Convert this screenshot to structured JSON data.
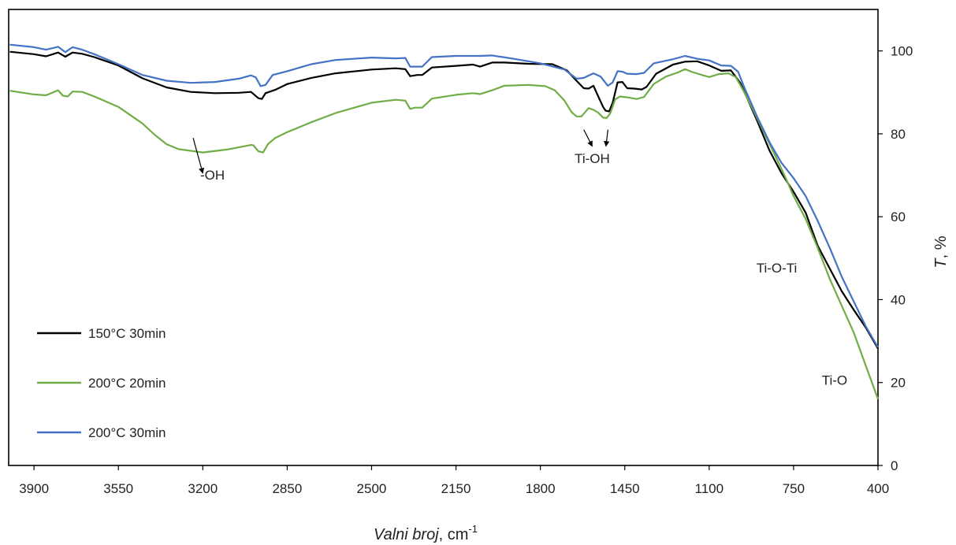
{
  "chart_data": {
    "type": "line",
    "xlabel_italic": "Valni broj",
    "xlabel_unit": ", cm",
    "xlabel_superscript": "-1",
    "ylabel_italic": "T",
    "ylabel_unit": ", %",
    "xlim": [
      4000,
      400
    ],
    "ylim": [
      0,
      100
    ],
    "x_ticks": [
      3900,
      3550,
      3200,
      2850,
      2500,
      2150,
      1800,
      1450,
      1100,
      750,
      400
    ],
    "y_ticks": [
      0,
      20,
      40,
      60,
      80,
      100
    ],
    "grid": false,
    "legend_position": "bottom-left",
    "series": [
      {
        "name": "150°C 30min",
        "color": "#000000",
        "points": [
          [
            4000,
            99.8
          ],
          [
            3900,
            99.2
          ],
          [
            3850,
            98.7
          ],
          [
            3800,
            99.6
          ],
          [
            3770,
            98.6
          ],
          [
            3740,
            99.6
          ],
          [
            3700,
            99.3
          ],
          [
            3650,
            98.5
          ],
          [
            3550,
            96.5
          ],
          [
            3450,
            93.4
          ],
          [
            3350,
            91.2
          ],
          [
            3250,
            90.1
          ],
          [
            3150,
            89.8
          ],
          [
            3050,
            89.9
          ],
          [
            3000,
            90.1
          ],
          [
            2970,
            88.6
          ],
          [
            2955,
            88.4
          ],
          [
            2940,
            89.8
          ],
          [
            2900,
            90.6
          ],
          [
            2850,
            92.0
          ],
          [
            2750,
            93.5
          ],
          [
            2650,
            94.6
          ],
          [
            2500,
            95.5
          ],
          [
            2400,
            95.8
          ],
          [
            2360,
            95.6
          ],
          [
            2340,
            93.9
          ],
          [
            2310,
            94.2
          ],
          [
            2290,
            94.2
          ],
          [
            2250,
            96.0
          ],
          [
            2150,
            96.4
          ],
          [
            2080,
            96.7
          ],
          [
            2050,
            96.2
          ],
          [
            2000,
            97.2
          ],
          [
            1950,
            97.2
          ],
          [
            1850,
            96.9
          ],
          [
            1750,
            96.8
          ],
          [
            1690,
            95.3
          ],
          [
            1650,
            92.8
          ],
          [
            1620,
            91.0
          ],
          [
            1600,
            90.9
          ],
          [
            1580,
            91.6
          ],
          [
            1560,
            89.0
          ],
          [
            1540,
            86.5
          ],
          [
            1530,
            85.6
          ],
          [
            1515,
            85.4
          ],
          [
            1500,
            87.5
          ],
          [
            1480,
            92.4
          ],
          [
            1460,
            92.5
          ],
          [
            1440,
            91.0
          ],
          [
            1410,
            90.9
          ],
          [
            1380,
            90.7
          ],
          [
            1360,
            91.3
          ],
          [
            1320,
            94.5
          ],
          [
            1250,
            96.7
          ],
          [
            1200,
            97.4
          ],
          [
            1150,
            97.5
          ],
          [
            1100,
            96.5
          ],
          [
            1050,
            95.2
          ],
          [
            1010,
            95.3
          ],
          [
            970,
            92.2
          ],
          [
            900,
            83.0
          ],
          [
            850,
            76.0
          ],
          [
            800,
            70.5
          ],
          [
            750,
            66.0
          ],
          [
            700,
            61.0
          ],
          [
            650,
            53.0
          ],
          [
            600,
            47.5
          ],
          [
            550,
            42.0
          ],
          [
            500,
            37.5
          ],
          [
            450,
            33.2
          ],
          [
            400,
            28.2
          ]
        ]
      },
      {
        "name": "200°C 20min",
        "color": "#70AD47",
        "points": [
          [
            4000,
            90.4
          ],
          [
            3900,
            89.5
          ],
          [
            3850,
            89.3
          ],
          [
            3800,
            90.5
          ],
          [
            3780,
            89.2
          ],
          [
            3760,
            89.0
          ],
          [
            3740,
            90.2
          ],
          [
            3700,
            90.1
          ],
          [
            3650,
            89.0
          ],
          [
            3550,
            86.5
          ],
          [
            3450,
            82.5
          ],
          [
            3400,
            79.8
          ],
          [
            3350,
            77.5
          ],
          [
            3300,
            76.3
          ],
          [
            3200,
            75.5
          ],
          [
            3100,
            76.2
          ],
          [
            3000,
            77.3
          ],
          [
            2990,
            77.2
          ],
          [
            2970,
            75.8
          ],
          [
            2950,
            75.5
          ],
          [
            2930,
            77.5
          ],
          [
            2900,
            79.0
          ],
          [
            2850,
            80.4
          ],
          [
            2750,
            82.8
          ],
          [
            2650,
            85.0
          ],
          [
            2500,
            87.5
          ],
          [
            2400,
            88.2
          ],
          [
            2360,
            88.0
          ],
          [
            2340,
            86.0
          ],
          [
            2320,
            86.3
          ],
          [
            2290,
            86.3
          ],
          [
            2250,
            88.5
          ],
          [
            2150,
            89.4
          ],
          [
            2080,
            89.8
          ],
          [
            2050,
            89.6
          ],
          [
            2000,
            90.5
          ],
          [
            1950,
            91.6
          ],
          [
            1850,
            91.8
          ],
          [
            1780,
            91.5
          ],
          [
            1740,
            90.5
          ],
          [
            1700,
            88.0
          ],
          [
            1670,
            85.2
          ],
          [
            1650,
            84.2
          ],
          [
            1630,
            84.2
          ],
          [
            1600,
            86.2
          ],
          [
            1580,
            85.8
          ],
          [
            1560,
            85.1
          ],
          [
            1540,
            83.9
          ],
          [
            1525,
            83.8
          ],
          [
            1510,
            85.0
          ],
          [
            1490,
            88.3
          ],
          [
            1470,
            89.0
          ],
          [
            1440,
            88.8
          ],
          [
            1400,
            88.4
          ],
          [
            1370,
            88.9
          ],
          [
            1330,
            92.0
          ],
          [
            1280,
            93.8
          ],
          [
            1230,
            94.8
          ],
          [
            1200,
            95.6
          ],
          [
            1170,
            94.9
          ],
          [
            1130,
            94.2
          ],
          [
            1100,
            93.7
          ],
          [
            1060,
            94.4
          ],
          [
            1020,
            94.6
          ],
          [
            990,
            93.7
          ],
          [
            960,
            90.6
          ],
          [
            920,
            86.0
          ],
          [
            870,
            80.0
          ],
          [
            820,
            74.0
          ],
          [
            780,
            69.0
          ],
          [
            750,
            65.0
          ],
          [
            700,
            59.5
          ],
          [
            650,
            52.5
          ],
          [
            600,
            45.0
          ],
          [
            550,
            38.5
          ],
          [
            500,
            32.0
          ],
          [
            450,
            24.0
          ],
          [
            400,
            16.0
          ]
        ]
      },
      {
        "name": "200°C 30min",
        "color": "#4472C4",
        "points": [
          [
            4000,
            101.5
          ],
          [
            3900,
            100.9
          ],
          [
            3850,
            100.3
          ],
          [
            3800,
            101.0
          ],
          [
            3770,
            99.7
          ],
          [
            3740,
            100.9
          ],
          [
            3700,
            100.3
          ],
          [
            3650,
            99.2
          ],
          [
            3550,
            96.8
          ],
          [
            3450,
            94.2
          ],
          [
            3350,
            92.8
          ],
          [
            3250,
            92.3
          ],
          [
            3150,
            92.5
          ],
          [
            3050,
            93.3
          ],
          [
            3000,
            94.1
          ],
          [
            2980,
            93.6
          ],
          [
            2960,
            91.5
          ],
          [
            2940,
            91.8
          ],
          [
            2910,
            94.2
          ],
          [
            2850,
            95.1
          ],
          [
            2750,
            96.8
          ],
          [
            2650,
            97.8
          ],
          [
            2500,
            98.4
          ],
          [
            2400,
            98.2
          ],
          [
            2360,
            98.3
          ],
          [
            2340,
            96.2
          ],
          [
            2310,
            96.2
          ],
          [
            2290,
            96.2
          ],
          [
            2250,
            98.5
          ],
          [
            2150,
            98.8
          ],
          [
            2050,
            98.8
          ],
          [
            2000,
            98.9
          ],
          [
            1900,
            98.0
          ],
          [
            1800,
            97.0
          ],
          [
            1700,
            95.5
          ],
          [
            1650,
            93.3
          ],
          [
            1620,
            93.5
          ],
          [
            1580,
            94.6
          ],
          [
            1550,
            93.8
          ],
          [
            1520,
            91.6
          ],
          [
            1500,
            92.4
          ],
          [
            1480,
            95.1
          ],
          [
            1460,
            95.0
          ],
          [
            1440,
            94.5
          ],
          [
            1400,
            94.4
          ],
          [
            1370,
            94.7
          ],
          [
            1330,
            97.0
          ],
          [
            1250,
            98.0
          ],
          [
            1200,
            98.8
          ],
          [
            1150,
            98.1
          ],
          [
            1100,
            97.7
          ],
          [
            1050,
            96.5
          ],
          [
            1010,
            96.4
          ],
          [
            980,
            95.0
          ],
          [
            950,
            90.6
          ],
          [
            900,
            84.0
          ],
          [
            850,
            78.0
          ],
          [
            800,
            73.0
          ],
          [
            750,
            69.3
          ],
          [
            700,
            65.0
          ],
          [
            650,
            59.0
          ],
          [
            600,
            52.5
          ],
          [
            550,
            45.5
          ],
          [
            500,
            39.5
          ],
          [
            450,
            33.5
          ],
          [
            400,
            28.5
          ]
        ]
      }
    ],
    "annotations": [
      {
        "text": "-OH",
        "at": [
          3160,
          69.0
        ],
        "arrow_from": [
          3240,
          79.0
        ],
        "arrow_to": [
          3200,
          70.5
        ]
      },
      {
        "text": "Ti-OH",
        "at": [
          1585,
          73.0
        ],
        "arrows": [
          [
            [
              1620,
              81.0
            ],
            [
              1585,
              77.0
            ]
          ],
          [
            [
              1520,
              81.0
            ],
            [
              1528,
              77.0
            ]
          ]
        ]
      },
      {
        "text": "Ti-O-Ti",
        "at": [
          820,
          46.5
        ]
      },
      {
        "text": "Ti-O",
        "at": [
          580,
          19.5
        ]
      }
    ]
  }
}
